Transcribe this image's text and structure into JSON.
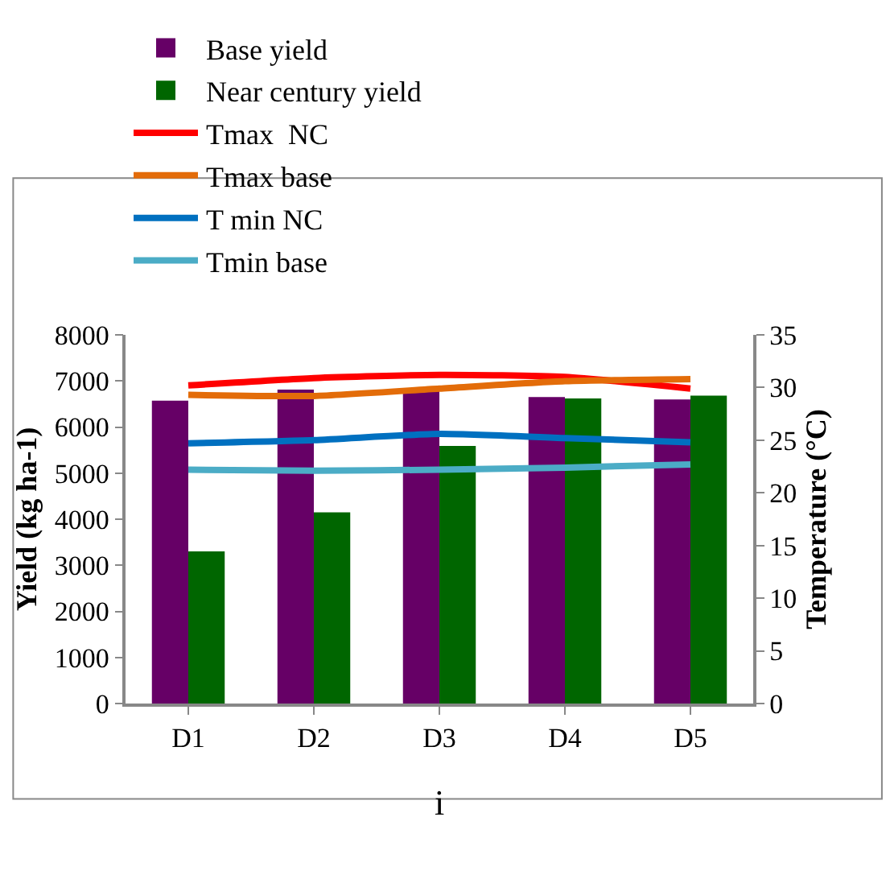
{
  "chart_data": {
    "type": "bar",
    "categories": [
      "D1",
      "D2",
      "D3",
      "D4",
      "D5"
    ],
    "ylabel": "Yield (kg ha-1)",
    "y2label": "Temperature (°C)",
    "ylim": [
      0,
      8000
    ],
    "yticks": [
      0,
      1000,
      2000,
      3000,
      4000,
      5000,
      6000,
      7000,
      8000
    ],
    "y2lim": [
      0,
      35
    ],
    "y2ticks": [
      0,
      5,
      10,
      15,
      20,
      25,
      30,
      35
    ],
    "grid": false,
    "legend": "top",
    "marker": "none",
    "line_style": "solid",
    "annotations": [
      "i"
    ],
    "series": [
      {
        "name": "Base yield",
        "color": "#660066",
        "values": [
          6570,
          6810,
          6780,
          6650,
          6600
        ]
      },
      {
        "name": "Near century yield",
        "color": "#006600",
        "values": [
          3300,
          4150,
          5590,
          6620,
          6680
        ]
      },
      {
        "name": "Tmax  NC",
        "type": "line",
        "axis": "y2",
        "color": "#ff0000",
        "values": [
          30.2,
          30.9,
          31.2,
          31.0,
          29.9
        ]
      },
      {
        "name": "Tmax base",
        "type": "line",
        "axis": "y2",
        "color": "#e36c09",
        "values": [
          29.3,
          29.2,
          29.9,
          30.6,
          30.8
        ]
      },
      {
        "name": "T min NC",
        "type": "line",
        "axis": "y2",
        "color": "#0070c0",
        "values": [
          24.7,
          25.0,
          25.6,
          25.2,
          24.8
        ]
      },
      {
        "name": "Tmin base",
        "type": "line",
        "axis": "y2",
        "color": "#4bacc6",
        "values": [
          22.2,
          22.1,
          22.2,
          22.4,
          22.7
        ]
      }
    ]
  }
}
